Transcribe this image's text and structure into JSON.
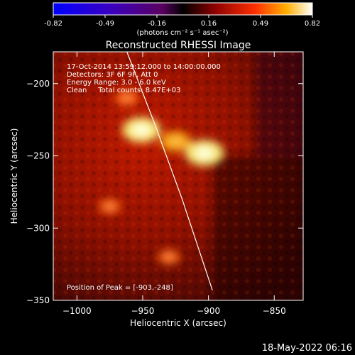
{
  "colorbar": {
    "ticks": [
      "-0.82",
      "-0.49",
      "-0.16",
      "0.16",
      "0.49",
      "0.82"
    ],
    "unit_label": "(photons cm⁻² s⁻¹ asec⁻²)"
  },
  "title": "Reconstructed RHESSI Image",
  "info": {
    "line1": "17-Oct-2014 13:59:12.000 to 14:00:00.000",
    "line2": "Detectors: 3F 6F 9F, Att 0",
    "line3": "Energy Range: 3.0 - 6.0 keV",
    "line4": "Clean     Total counts: 8.47E+03"
  },
  "peak_label": "Position of Peak = [-903,-248]",
  "timestamp": "18-May-2022 06:16",
  "chart_data": {
    "type": "heatmap",
    "title": "Reconstructed RHESSI Image",
    "xlabel": "Heliocentric X (arcsec)",
    "ylabel": "Heliocentric Y (arcsec)",
    "xlim": [
      -1018,
      -828
    ],
    "ylim": [
      -350,
      -178
    ],
    "x_ticks": [
      -1000,
      -950,
      -900,
      -850
    ],
    "y_ticks": [
      -200,
      -250,
      -300,
      -350
    ],
    "colorbar_range": [
      -0.82,
      0.82
    ],
    "colormap": "red-temperature (blue-purple negative, red-yellow-white positive)",
    "sources": [
      {
        "x": -951,
        "y": -232,
        "intensity": 0.8
      },
      {
        "x": -903,
        "y": -248,
        "intensity": 0.82
      },
      {
        "x": -925,
        "y": -240,
        "intensity": 0.55
      },
      {
        "x": -962,
        "y": -210,
        "intensity": 0.35
      },
      {
        "x": -975,
        "y": -285,
        "intensity": 0.3
      },
      {
        "x": -930,
        "y": -320,
        "intensity": 0.3
      }
    ],
    "limb_curve": [
      [
        -962,
        -178
      ],
      [
        -940,
        -230
      ],
      [
        -920,
        -280
      ],
      [
        -897,
        -343
      ]
    ],
    "peak_position": [
      -903,
      -248
    ]
  }
}
